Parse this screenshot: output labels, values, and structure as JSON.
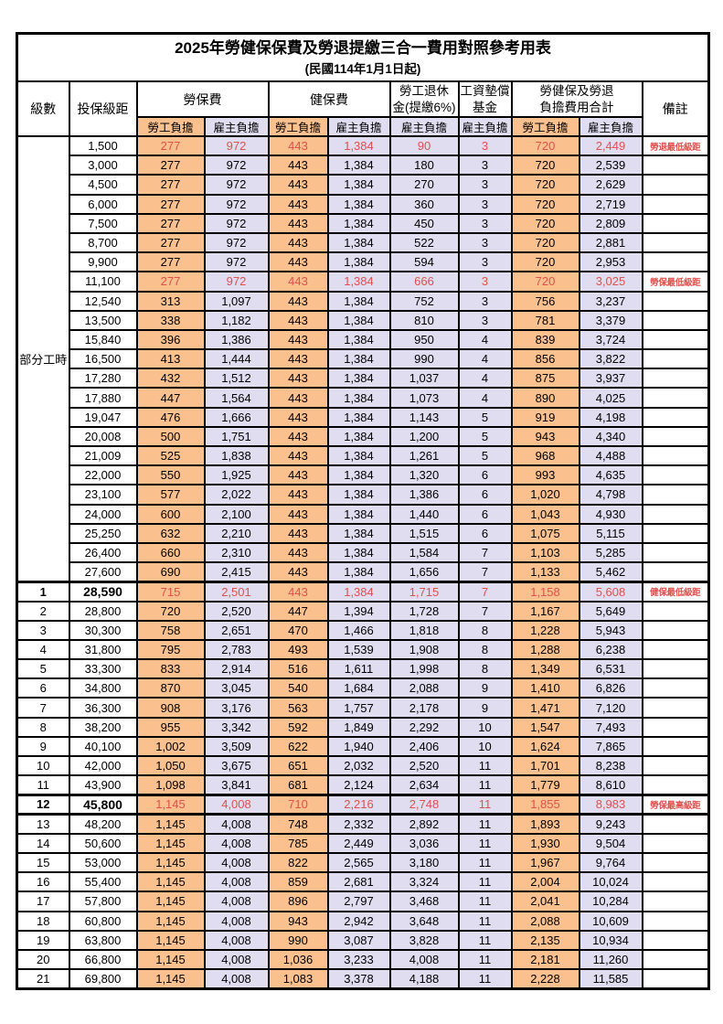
{
  "title": "2025年勞健保保費及勞退提繳三合一費用對照參考用表",
  "subtitle": "(民國114年1月1日起)",
  "colors": {
    "employee_bg": "#FAC08E",
    "employer_bg": "#E0DDF0",
    "highlight_red": "#E0504D",
    "border": "#000000"
  },
  "header": {
    "level_label": "級數",
    "bracket_label": "投保級距",
    "labor_group": "勞保費",
    "health_group": "健保費",
    "pension_line1": "勞工退休",
    "pension_line2": "金(提繳6%)",
    "wage_fund_line1": "工資墊償",
    "wage_fund_line2": "基金",
    "total_line1": "勞健保及勞退",
    "total_line2": "負擔費用合計",
    "employee_label": "勞工負擔",
    "employer_label": "雇主負擔",
    "remark_label": "備註"
  },
  "table": {
    "part_time_label": "部分工時",
    "part_time_span": 23,
    "rows": [
      {
        "level": null,
        "bracket": "1,500",
        "fees": [
          "277",
          "972",
          "443",
          "1,384",
          "90",
          "3",
          "720",
          "2,449"
        ],
        "remark": "勞退最低級距",
        "highlight": true,
        "bold": false,
        "thick_top": false,
        "thick_bottom": false
      },
      {
        "level": null,
        "bracket": "3,000",
        "fees": [
          "277",
          "972",
          "443",
          "1,384",
          "180",
          "3",
          "720",
          "2,539"
        ],
        "remark": "",
        "highlight": false,
        "bold": false,
        "thick_top": false,
        "thick_bottom": false
      },
      {
        "level": null,
        "bracket": "4,500",
        "fees": [
          "277",
          "972",
          "443",
          "1,384",
          "270",
          "3",
          "720",
          "2,629"
        ],
        "remark": "",
        "highlight": false,
        "bold": false,
        "thick_top": false,
        "thick_bottom": false
      },
      {
        "level": null,
        "bracket": "6,000",
        "fees": [
          "277",
          "972",
          "443",
          "1,384",
          "360",
          "3",
          "720",
          "2,719"
        ],
        "remark": "",
        "highlight": false,
        "bold": false,
        "thick_top": false,
        "thick_bottom": false
      },
      {
        "level": null,
        "bracket": "7,500",
        "fees": [
          "277",
          "972",
          "443",
          "1,384",
          "450",
          "3",
          "720",
          "2,809"
        ],
        "remark": "",
        "highlight": false,
        "bold": false,
        "thick_top": false,
        "thick_bottom": false
      },
      {
        "level": null,
        "bracket": "8,700",
        "fees": [
          "277",
          "972",
          "443",
          "1,384",
          "522",
          "3",
          "720",
          "2,881"
        ],
        "remark": "",
        "highlight": false,
        "bold": false,
        "thick_top": false,
        "thick_bottom": false
      },
      {
        "level": null,
        "bracket": "9,900",
        "fees": [
          "277",
          "972",
          "443",
          "1,384",
          "594",
          "3",
          "720",
          "2,953"
        ],
        "remark": "",
        "highlight": false,
        "bold": false,
        "thick_top": false,
        "thick_bottom": false
      },
      {
        "level": null,
        "bracket": "11,100",
        "fees": [
          "277",
          "972",
          "443",
          "1,384",
          "666",
          "3",
          "720",
          "3,025"
        ],
        "remark": "勞保最低級距",
        "highlight": true,
        "bold": false,
        "thick_top": false,
        "thick_bottom": false
      },
      {
        "level": null,
        "bracket": "12,540",
        "fees": [
          "313",
          "1,097",
          "443",
          "1,384",
          "752",
          "3",
          "756",
          "3,237"
        ],
        "remark": "",
        "highlight": false,
        "bold": false,
        "thick_top": false,
        "thick_bottom": false
      },
      {
        "level": null,
        "bracket": "13,500",
        "fees": [
          "338",
          "1,182",
          "443",
          "1,384",
          "810",
          "3",
          "781",
          "3,379"
        ],
        "remark": "",
        "highlight": false,
        "bold": false,
        "thick_top": false,
        "thick_bottom": false
      },
      {
        "level": null,
        "bracket": "15,840",
        "fees": [
          "396",
          "1,386",
          "443",
          "1,384",
          "950",
          "4",
          "839",
          "3,724"
        ],
        "remark": "",
        "highlight": false,
        "bold": false,
        "thick_top": false,
        "thick_bottom": false
      },
      {
        "level": null,
        "bracket": "16,500",
        "fees": [
          "413",
          "1,444",
          "443",
          "1,384",
          "990",
          "4",
          "856",
          "3,822"
        ],
        "remark": "",
        "highlight": false,
        "bold": false,
        "thick_top": false,
        "thick_bottom": false
      },
      {
        "level": null,
        "bracket": "17,280",
        "fees": [
          "432",
          "1,512",
          "443",
          "1,384",
          "1,037",
          "4",
          "875",
          "3,937"
        ],
        "remark": "",
        "highlight": false,
        "bold": false,
        "thick_top": false,
        "thick_bottom": false
      },
      {
        "level": null,
        "bracket": "17,880",
        "fees": [
          "447",
          "1,564",
          "443",
          "1,384",
          "1,073",
          "4",
          "890",
          "4,025"
        ],
        "remark": "",
        "highlight": false,
        "bold": false,
        "thick_top": false,
        "thick_bottom": false
      },
      {
        "level": null,
        "bracket": "19,047",
        "fees": [
          "476",
          "1,666",
          "443",
          "1,384",
          "1,143",
          "5",
          "919",
          "4,198"
        ],
        "remark": "",
        "highlight": false,
        "bold": false,
        "thick_top": false,
        "thick_bottom": false
      },
      {
        "level": null,
        "bracket": "20,008",
        "fees": [
          "500",
          "1,751",
          "443",
          "1,384",
          "1,200",
          "5",
          "943",
          "4,340"
        ],
        "remark": "",
        "highlight": false,
        "bold": false,
        "thick_top": false,
        "thick_bottom": false
      },
      {
        "level": null,
        "bracket": "21,009",
        "fees": [
          "525",
          "1,838",
          "443",
          "1,384",
          "1,261",
          "5",
          "968",
          "4,488"
        ],
        "remark": "",
        "highlight": false,
        "bold": false,
        "thick_top": false,
        "thick_bottom": false
      },
      {
        "level": null,
        "bracket": "22,000",
        "fees": [
          "550",
          "1,925",
          "443",
          "1,384",
          "1,320",
          "6",
          "993",
          "4,635"
        ],
        "remark": "",
        "highlight": false,
        "bold": false,
        "thick_top": false,
        "thick_bottom": false
      },
      {
        "level": null,
        "bracket": "23,100",
        "fees": [
          "577",
          "2,022",
          "443",
          "1,384",
          "1,386",
          "6",
          "1,020",
          "4,798"
        ],
        "remark": "",
        "highlight": false,
        "bold": false,
        "thick_top": false,
        "thick_bottom": false
      },
      {
        "level": null,
        "bracket": "24,000",
        "fees": [
          "600",
          "2,100",
          "443",
          "1,384",
          "1,440",
          "6",
          "1,043",
          "4,930"
        ],
        "remark": "",
        "highlight": false,
        "bold": false,
        "thick_top": false,
        "thick_bottom": false
      },
      {
        "level": null,
        "bracket": "25,250",
        "fees": [
          "632",
          "2,210",
          "443",
          "1,384",
          "1,515",
          "6",
          "1,075",
          "5,115"
        ],
        "remark": "",
        "highlight": false,
        "bold": false,
        "thick_top": false,
        "thick_bottom": false
      },
      {
        "level": null,
        "bracket": "26,400",
        "fees": [
          "660",
          "2,310",
          "443",
          "1,384",
          "1,584",
          "7",
          "1,103",
          "5,285"
        ],
        "remark": "",
        "highlight": false,
        "bold": false,
        "thick_top": false,
        "thick_bottom": false
      },
      {
        "level": null,
        "bracket": "27,600",
        "fees": [
          "690",
          "2,415",
          "443",
          "1,384",
          "1,656",
          "7",
          "1,133",
          "5,462"
        ],
        "remark": "",
        "highlight": false,
        "bold": false,
        "thick_top": false,
        "thick_bottom": false
      },
      {
        "level": "1",
        "bracket": "28,590",
        "fees": [
          "715",
          "2,501",
          "443",
          "1,384",
          "1,715",
          "7",
          "1,158",
          "5,608"
        ],
        "remark": "健保最低級距",
        "highlight": true,
        "bold": true,
        "thick_top": true,
        "thick_bottom": false
      },
      {
        "level": "2",
        "bracket": "28,800",
        "fees": [
          "720",
          "2,520",
          "447",
          "1,394",
          "1,728",
          "7",
          "1,167",
          "5,649"
        ],
        "remark": "",
        "highlight": false,
        "bold": false,
        "thick_top": false,
        "thick_bottom": false
      },
      {
        "level": "3",
        "bracket": "30,300",
        "fees": [
          "758",
          "2,651",
          "470",
          "1,466",
          "1,818",
          "8",
          "1,228",
          "5,943"
        ],
        "remark": "",
        "highlight": false,
        "bold": false,
        "thick_top": false,
        "thick_bottom": false
      },
      {
        "level": "4",
        "bracket": "31,800",
        "fees": [
          "795",
          "2,783",
          "493",
          "1,539",
          "1,908",
          "8",
          "1,288",
          "6,238"
        ],
        "remark": "",
        "highlight": false,
        "bold": false,
        "thick_top": false,
        "thick_bottom": false
      },
      {
        "level": "5",
        "bracket": "33,300",
        "fees": [
          "833",
          "2,914",
          "516",
          "1,611",
          "1,998",
          "8",
          "1,349",
          "6,531"
        ],
        "remark": "",
        "highlight": false,
        "bold": false,
        "thick_top": false,
        "thick_bottom": false
      },
      {
        "level": "6",
        "bracket": "34,800",
        "fees": [
          "870",
          "3,045",
          "540",
          "1,684",
          "2,088",
          "9",
          "1,410",
          "6,826"
        ],
        "remark": "",
        "highlight": false,
        "bold": false,
        "thick_top": false,
        "thick_bottom": false
      },
      {
        "level": "7",
        "bracket": "36,300",
        "fees": [
          "908",
          "3,176",
          "563",
          "1,757",
          "2,178",
          "9",
          "1,471",
          "7,120"
        ],
        "remark": "",
        "highlight": false,
        "bold": false,
        "thick_top": false,
        "thick_bottom": false
      },
      {
        "level": "8",
        "bracket": "38,200",
        "fees": [
          "955",
          "3,342",
          "592",
          "1,849",
          "2,292",
          "10",
          "1,547",
          "7,493"
        ],
        "remark": "",
        "highlight": false,
        "bold": false,
        "thick_top": false,
        "thick_bottom": false
      },
      {
        "level": "9",
        "bracket": "40,100",
        "fees": [
          "1,002",
          "3,509",
          "622",
          "1,940",
          "2,406",
          "10",
          "1,624",
          "7,865"
        ],
        "remark": "",
        "highlight": false,
        "bold": false,
        "thick_top": false,
        "thick_bottom": false
      },
      {
        "level": "10",
        "bracket": "42,000",
        "fees": [
          "1,050",
          "3,675",
          "651",
          "2,032",
          "2,520",
          "11",
          "1,701",
          "8,238"
        ],
        "remark": "",
        "highlight": false,
        "bold": false,
        "thick_top": false,
        "thick_bottom": false
      },
      {
        "level": "11",
        "bracket": "43,900",
        "fees": [
          "1,098",
          "3,841",
          "681",
          "2,124",
          "2,634",
          "11",
          "1,779",
          "8,610"
        ],
        "remark": "",
        "highlight": false,
        "bold": false,
        "thick_top": false,
        "thick_bottom": false
      },
      {
        "level": "12",
        "bracket": "45,800",
        "fees": [
          "1,145",
          "4,008",
          "710",
          "2,216",
          "2,748",
          "11",
          "1,855",
          "8,983"
        ],
        "remark": "勞保最高級距",
        "highlight": true,
        "bold": true,
        "thick_top": true,
        "thick_bottom": true
      },
      {
        "level": "13",
        "bracket": "48,200",
        "fees": [
          "1,145",
          "4,008",
          "748",
          "2,332",
          "2,892",
          "11",
          "1,893",
          "9,243"
        ],
        "remark": "",
        "highlight": false,
        "bold": false,
        "thick_top": false,
        "thick_bottom": false
      },
      {
        "level": "14",
        "bracket": "50,600",
        "fees": [
          "1,145",
          "4,008",
          "785",
          "2,449",
          "3,036",
          "11",
          "1,930",
          "9,504"
        ],
        "remark": "",
        "highlight": false,
        "bold": false,
        "thick_top": false,
        "thick_bottom": false
      },
      {
        "level": "15",
        "bracket": "53,000",
        "fees": [
          "1,145",
          "4,008",
          "822",
          "2,565",
          "3,180",
          "11",
          "1,967",
          "9,764"
        ],
        "remark": "",
        "highlight": false,
        "bold": false,
        "thick_top": false,
        "thick_bottom": false
      },
      {
        "level": "16",
        "bracket": "55,400",
        "fees": [
          "1,145",
          "4,008",
          "859",
          "2,681",
          "3,324",
          "11",
          "2,004",
          "10,024"
        ],
        "remark": "",
        "highlight": false,
        "bold": false,
        "thick_top": false,
        "thick_bottom": false
      },
      {
        "level": "17",
        "bracket": "57,800",
        "fees": [
          "1,145",
          "4,008",
          "896",
          "2,797",
          "3,468",
          "11",
          "2,041",
          "10,284"
        ],
        "remark": "",
        "highlight": false,
        "bold": false,
        "thick_top": false,
        "thick_bottom": false
      },
      {
        "level": "18",
        "bracket": "60,800",
        "fees": [
          "1,145",
          "4,008",
          "943",
          "2,942",
          "3,648",
          "11",
          "2,088",
          "10,609"
        ],
        "remark": "",
        "highlight": false,
        "bold": false,
        "thick_top": false,
        "thick_bottom": false
      },
      {
        "level": "19",
        "bracket": "63,800",
        "fees": [
          "1,145",
          "4,008",
          "990",
          "3,087",
          "3,828",
          "11",
          "2,135",
          "10,934"
        ],
        "remark": "",
        "highlight": false,
        "bold": false,
        "thick_top": false,
        "thick_bottom": false
      },
      {
        "level": "20",
        "bracket": "66,800",
        "fees": [
          "1,145",
          "4,008",
          "1,036",
          "3,233",
          "4,008",
          "11",
          "2,181",
          "11,260"
        ],
        "remark": "",
        "highlight": false,
        "bold": false,
        "thick_top": false,
        "thick_bottom": false
      },
      {
        "level": "21",
        "bracket": "69,800",
        "fees": [
          "1,145",
          "4,008",
          "1,083",
          "3,378",
          "4,188",
          "11",
          "2,228",
          "11,585"
        ],
        "remark": "",
        "highlight": false,
        "bold": false,
        "thick_top": false,
        "thick_bottom": false
      }
    ]
  }
}
